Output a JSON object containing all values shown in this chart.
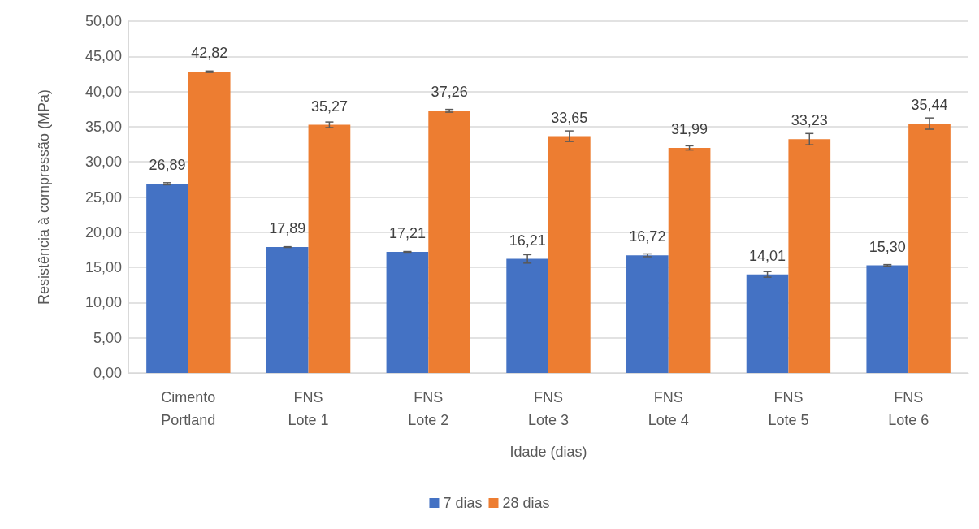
{
  "chart_data": {
    "type": "bar",
    "xlabel": "Idade (dias)",
    "ylabel": "Resistência à compressão (MPa)",
    "categories": [
      "Cimento\nPortland",
      "FNS\nLote 1",
      "FNS\nLote 2",
      "FNS\nLote 3",
      "FNS\nLote 4",
      "FNS\nLote 5",
      "FNS\nLote 6"
    ],
    "series": [
      {
        "name": "7 dias",
        "color": "#4472c4",
        "values": [
          26.89,
          17.89,
          17.21,
          16.21,
          16.72,
          14.01,
          15.3
        ],
        "errors": [
          0.15,
          0.05,
          0.05,
          0.6,
          0.2,
          0.4,
          0.1
        ],
        "value_labels": [
          "26,89",
          "17,89",
          "17,21",
          "16,21",
          "16,72",
          "14,01",
          "15,30"
        ]
      },
      {
        "name": "28 dias",
        "color": "#ed7d31",
        "values": [
          42.82,
          35.27,
          37.26,
          33.65,
          31.99,
          33.23,
          35.44
        ],
        "errors": [
          0.1,
          0.4,
          0.2,
          0.75,
          0.3,
          0.8,
          0.8
        ],
        "value_labels": [
          "42,82",
          "35,27",
          "37,26",
          "33,65",
          "31,99",
          "33,23",
          "35,44"
        ]
      }
    ],
    "ylim": [
      0,
      50
    ],
    "yticks": [
      {
        "value": 0,
        "label": "0,00"
      },
      {
        "value": 5,
        "label": "5,00"
      },
      {
        "value": 10,
        "label": "10,00"
      },
      {
        "value": 15,
        "label": "15,00"
      },
      {
        "value": 20,
        "label": "20,00"
      },
      {
        "value": 25,
        "label": "25,00"
      },
      {
        "value": 30,
        "label": "30,00"
      },
      {
        "value": 35,
        "label": "35,00"
      },
      {
        "value": 40,
        "label": "40,00"
      },
      {
        "value": 45,
        "label": "45,00"
      },
      {
        "value": 50,
        "label": "50,00"
      }
    ],
    "grid": "y",
    "legend": "bottom"
  }
}
